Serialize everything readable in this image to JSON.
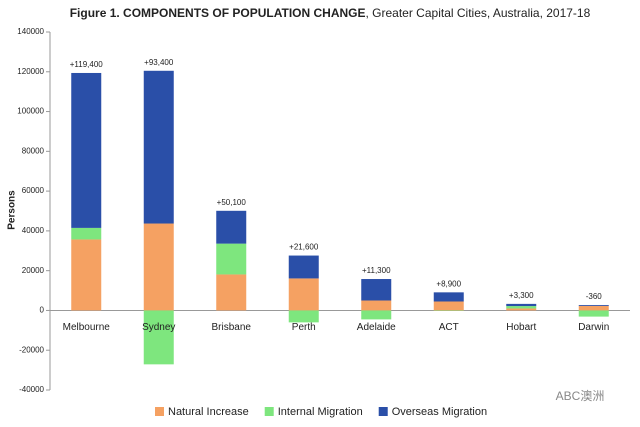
{
  "chart_data": {
    "type": "stacked_bar",
    "title": "Figure 1. COMPONENTS OF POPULATION CHANGE",
    "subtitle": ", Greater Capital Cities, Australia, 2017-18",
    "y_label": "Persons",
    "categories": [
      "Melbourne",
      "Sydney",
      "Brisbane",
      "Perth",
      "Adelaide",
      "ACT",
      "Hobart",
      "Darwin"
    ],
    "series": [
      {
        "name": "Natural Increase",
        "color": "#f5a162",
        "values": [
          35700,
          43700,
          18100,
          16100,
          5000,
          4500,
          1000,
          2300
        ]
      },
      {
        "name": "Internal Migration",
        "color": "#7ee67e",
        "values": [
          5800,
          -27100,
          15500,
          -6000,
          -4500,
          -200,
          1200,
          -3100
        ]
      },
      {
        "name": "Overseas Migration",
        "color": "#2a4fa8",
        "values": [
          77900,
          76800,
          16500,
          11500,
          10800,
          4600,
          1100,
          440
        ]
      }
    ],
    "totals": [
      119400,
      93400,
      50100,
      21600,
      11300,
      8900,
      3300,
      -360
    ],
    "total_labels": [
      "+119,400",
      "+93,400",
      "+50,100",
      "+21,600",
      "+11,300",
      "+8,900",
      "+3,300",
      "-360"
    ],
    "ylim": [
      -40000,
      140000
    ],
    "yticks": [
      -40000,
      -20000,
      0,
      20000,
      40000,
      60000,
      80000,
      100000,
      120000,
      140000
    ],
    "legend": "bottom",
    "watermark": "ABC澳洲"
  }
}
